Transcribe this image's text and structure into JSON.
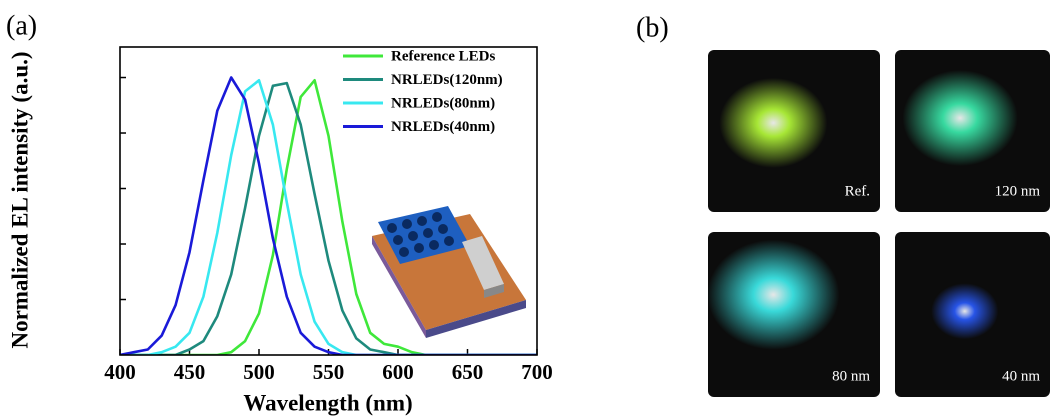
{
  "panel_labels": [
    "(a)",
    "(b)"
  ],
  "chart_data": {
    "type": "line",
    "x_label": "Wavelength (nm)",
    "y_label": "Normalized EL intensity (a.u.)",
    "x": [
      400,
      410,
      420,
      430,
      440,
      450,
      460,
      470,
      480,
      490,
      500,
      510,
      520,
      530,
      540,
      550,
      560,
      570,
      580,
      590,
      600,
      610,
      620,
      630,
      640,
      650,
      660,
      670,
      680,
      690,
      700
    ],
    "series": [
      {
        "name": "Reference LEDs",
        "color": "#3fe83a",
        "values": [
          0,
          0,
          0,
          0,
          0,
          0,
          0,
          0,
          0.01,
          0.05,
          0.15,
          0.36,
          0.67,
          0.93,
          0.99,
          0.79,
          0.48,
          0.22,
          0.08,
          0.04,
          0.03,
          0.01,
          0,
          0,
          0,
          0,
          0,
          0,
          0,
          0,
          0
        ]
      },
      {
        "name": "NRLEDs(120nm)",
        "color": "#1e8a7d",
        "values": [
          0,
          0,
          0,
          0,
          0,
          0.02,
          0.05,
          0.14,
          0.29,
          0.53,
          0.79,
          0.97,
          0.98,
          0.83,
          0.58,
          0.34,
          0.16,
          0.06,
          0.02,
          0.01,
          0,
          0,
          0,
          0,
          0,
          0,
          0,
          0,
          0,
          0,
          0
        ]
      },
      {
        "name": "NRLEDs(80nm)",
        "color": "#38e8f0",
        "values": [
          0,
          0,
          0,
          0.01,
          0.03,
          0.08,
          0.21,
          0.44,
          0.72,
          0.95,
          0.99,
          0.83,
          0.55,
          0.29,
          0.12,
          0.04,
          0.01,
          0,
          0,
          0,
          0,
          0,
          0,
          0,
          0,
          0,
          0,
          0,
          0,
          0,
          0
        ]
      },
      {
        "name": "NRLEDs(40nm)",
        "color": "#1a1ad8",
        "values": [
          0,
          0.01,
          0.02,
          0.07,
          0.18,
          0.37,
          0.63,
          0.88,
          1.0,
          0.92,
          0.69,
          0.42,
          0.21,
          0.08,
          0.03,
          0.01,
          0,
          0,
          0,
          0,
          0,
          0,
          0,
          0,
          0,
          0,
          0,
          0,
          0,
          0,
          0
        ]
      }
    ],
    "xlim": [
      400,
      700
    ],
    "xticks": [
      400,
      450,
      500,
      550,
      600,
      650,
      700
    ],
    "ylim": [
      0,
      1.11
    ],
    "yticks": [
      0.2,
      0.4,
      0.6,
      0.8,
      1.0
    ],
    "legend": "upper right"
  },
  "photos": [
    {
      "label": "Ref.",
      "color": "#b8ff3a"
    },
    {
      "label": "120 nm",
      "color": "#3cf0b0"
    },
    {
      "label": "80 nm",
      "color": "#3ef0f0"
    },
    {
      "label": "40 nm",
      "color": "#2a5cff"
    }
  ]
}
